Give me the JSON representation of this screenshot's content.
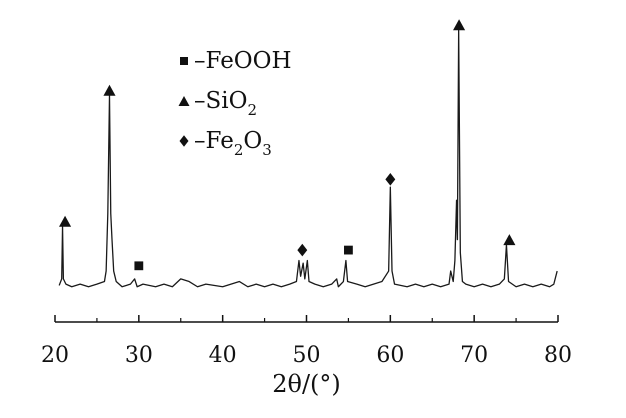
{
  "chart_data": {
    "type": "line",
    "title": "",
    "xlabel": "2θ/(°)",
    "ylabel": "",
    "xlim": [
      20,
      80
    ],
    "ylim": [
      0,
      100
    ],
    "x_ticks": [
      20,
      30,
      40,
      50,
      60,
      70,
      80
    ],
    "x_tick_labels": [
      "20",
      "30",
      "40",
      "50",
      "60",
      "70",
      "80"
    ],
    "y_axis_visible": false,
    "grid": false,
    "series": [
      {
        "name": "",
        "color": "#1a1a1a",
        "points": [
          [
            20.5,
            2.5
          ],
          [
            20.8,
            5
          ],
          [
            20.9,
            25
          ],
          [
            21.0,
            5
          ],
          [
            21.3,
            3
          ],
          [
            22,
            2
          ],
          [
            23,
            3
          ],
          [
            24,
            2
          ],
          [
            25,
            3
          ],
          [
            25.9,
            4
          ],
          [
            26.1,
            8
          ],
          [
            26.3,
            30
          ],
          [
            26.5,
            75
          ],
          [
            26.65,
            30
          ],
          [
            26.8,
            20
          ],
          [
            27.0,
            8
          ],
          [
            27.3,
            4
          ],
          [
            28,
            2
          ],
          [
            29,
            3
          ],
          [
            29.5,
            5
          ],
          [
            29.8,
            2
          ],
          [
            30.5,
            3
          ],
          [
            32,
            2
          ],
          [
            33,
            3
          ],
          [
            34,
            2
          ],
          [
            35,
            5
          ],
          [
            36,
            4
          ],
          [
            37,
            2
          ],
          [
            38,
            3
          ],
          [
            40,
            2
          ],
          [
            41,
            3
          ],
          [
            42,
            4
          ],
          [
            43,
            2
          ],
          [
            44,
            3
          ],
          [
            45,
            2
          ],
          [
            46,
            3
          ],
          [
            47,
            2
          ],
          [
            48,
            3
          ],
          [
            48.8,
            4
          ],
          [
            49.1,
            12
          ],
          [
            49.3,
            6
          ],
          [
            49.6,
            11
          ],
          [
            49.8,
            5
          ],
          [
            50.1,
            12
          ],
          [
            50.3,
            4
          ],
          [
            51,
            3
          ],
          [
            52,
            2
          ],
          [
            53,
            3
          ],
          [
            53.6,
            5
          ],
          [
            53.8,
            2
          ],
          [
            54.4,
            4
          ],
          [
            54.7,
            12
          ],
          [
            54.9,
            4
          ],
          [
            56,
            3
          ],
          [
            57,
            2
          ],
          [
            58,
            3
          ],
          [
            59,
            4
          ],
          [
            59.8,
            8
          ],
          [
            60.0,
            40
          ],
          [
            60.2,
            8
          ],
          [
            60.5,
            3
          ],
          [
            62,
            2
          ],
          [
            63,
            3
          ],
          [
            64,
            2
          ],
          [
            65,
            3
          ],
          [
            66,
            2
          ],
          [
            67,
            3
          ],
          [
            67.2,
            8
          ],
          [
            67.5,
            4
          ],
          [
            67.7,
            12
          ],
          [
            67.9,
            35
          ],
          [
            68.0,
            20
          ],
          [
            68.15,
            100
          ],
          [
            68.35,
            15
          ],
          [
            68.6,
            4
          ],
          [
            69,
            3
          ],
          [
            70,
            2
          ],
          [
            71,
            3
          ],
          [
            72,
            2
          ],
          [
            73,
            3
          ],
          [
            73.6,
            5
          ],
          [
            73.85,
            18
          ],
          [
            74.1,
            4
          ],
          [
            75,
            2
          ],
          [
            76,
            3
          ],
          [
            77,
            2
          ],
          [
            78,
            3
          ],
          [
            79,
            2
          ],
          [
            79.5,
            3
          ],
          [
            79.9,
            8
          ]
        ]
      }
    ],
    "markers": [
      {
        "symbol": "triangle",
        "x": 21.2,
        "y": 27
      },
      {
        "symbol": "triangle",
        "x": 26.5,
        "y": 77
      },
      {
        "symbol": "square",
        "x": 30.0,
        "y": 10
      },
      {
        "symbol": "diamond",
        "x": 49.5,
        "y": 16
      },
      {
        "symbol": "square",
        "x": 55.0,
        "y": 16
      },
      {
        "symbol": "diamond",
        "x": 60.0,
        "y": 43
      },
      {
        "symbol": "triangle",
        "x": 68.2,
        "y": 102
      },
      {
        "symbol": "triangle",
        "x": 74.2,
        "y": 20
      }
    ],
    "legend": {
      "placement": "top-left",
      "entries": [
        {
          "symbol": "square",
          "label": "–FeOOH"
        },
        {
          "symbol": "triangle",
          "label": "–SiO",
          "sub": "2"
        },
        {
          "symbol": "diamond",
          "label": "–Fe",
          "sub": "2",
          "label2": "O",
          "sub2": "3"
        }
      ]
    }
  }
}
